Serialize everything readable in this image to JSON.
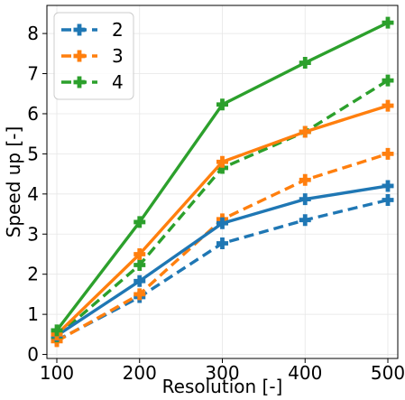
{
  "chart_data": {
    "type": "line",
    "xlabel": "Resolution [-]",
    "ylabel": "Speed up [-]",
    "xlim": [
      88,
      512
    ],
    "ylim": [
      -0.1,
      8.7
    ],
    "xticks": [
      100,
      200,
      300,
      400,
      500
    ],
    "yticks": [
      0,
      1,
      2,
      3,
      4,
      5,
      6,
      7,
      8
    ],
    "grid": true,
    "legend_position": "top-left",
    "legend": [
      {
        "label": "2",
        "color": "#1f77b4"
      },
      {
        "label": "3",
        "color": "#ff7f0e"
      },
      {
        "label": "4",
        "color": "#2ca02c"
      }
    ],
    "x": [
      100,
      200,
      300,
      400,
      500
    ],
    "series": [
      {
        "group": "2",
        "style": "dashed",
        "color": "#1f77b4",
        "values": [
          0.35,
          1.43,
          2.77,
          3.35,
          3.85
        ]
      },
      {
        "group": "3",
        "style": "dashed",
        "color": "#ff7f0e",
        "values": [
          0.33,
          1.5,
          3.37,
          4.35,
          5.0
        ]
      },
      {
        "group": "4",
        "style": "dashed",
        "color": "#2ca02c",
        "values": [
          0.45,
          2.23,
          4.65,
          5.55,
          6.83
        ]
      },
      {
        "group": "2",
        "style": "solid",
        "color": "#1f77b4",
        "values": [
          0.47,
          1.83,
          3.27,
          3.87,
          4.2
        ]
      },
      {
        "group": "3",
        "style": "solid",
        "color": "#ff7f0e",
        "values": [
          0.5,
          2.5,
          4.8,
          5.55,
          6.2
        ]
      },
      {
        "group": "4",
        "style": "solid",
        "color": "#2ca02c",
        "values": [
          0.6,
          3.3,
          6.23,
          7.27,
          8.27
        ]
      }
    ]
  }
}
